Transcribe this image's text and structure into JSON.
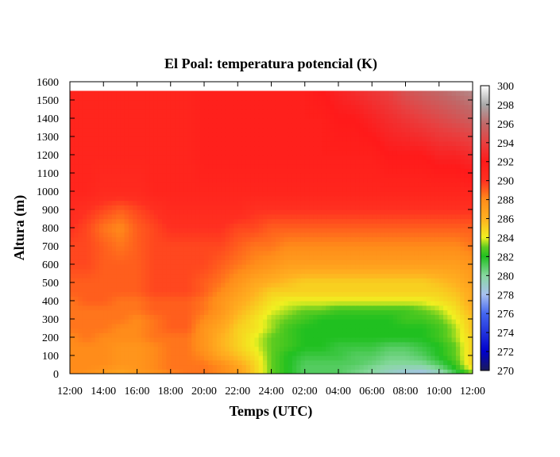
{
  "chart_data": {
    "type": "heatmap",
    "title": "El Poal: temperatura potencial (K)",
    "xlabel": "Temps (UTC)",
    "ylabel": "Altura (m)",
    "x_ticks": [
      "12:00",
      "14:00",
      "16:00",
      "18:00",
      "20:00",
      "22:00",
      "24:00",
      "02:00",
      "04:00",
      "06:00",
      "08:00",
      "10:00",
      "12:00"
    ],
    "x_range_hours": [
      0,
      24
    ],
    "y_ticks": [
      0,
      100,
      200,
      300,
      400,
      500,
      600,
      700,
      800,
      900,
      1000,
      1100,
      1200,
      1300,
      1400,
      1500,
      1600
    ],
    "ylim": [
      0,
      1600
    ],
    "data_top_m": 1550,
    "colorbar": {
      "ticks": [
        270,
        272,
        274,
        276,
        278,
        280,
        282,
        284,
        286,
        288,
        290,
        292,
        294,
        296,
        298,
        300
      ],
      "range": [
        270,
        300
      ],
      "colors": [
        {
          "v": 270,
          "c": "#1a1a5a"
        },
        {
          "v": 272,
          "c": "#0000cc"
        },
        {
          "v": 274,
          "c": "#2233dd"
        },
        {
          "v": 276,
          "c": "#4466ee"
        },
        {
          "v": 278,
          "c": "#a8c0f0"
        },
        {
          "v": 280,
          "c": "#88d8a0"
        },
        {
          "v": 282,
          "c": "#20c020"
        },
        {
          "v": 283,
          "c": "#60cc20"
        },
        {
          "v": 284,
          "c": "#f0f020"
        },
        {
          "v": 286,
          "c": "#ffb020"
        },
        {
          "v": 288,
          "c": "#ff8c1a"
        },
        {
          "v": 290,
          "c": "#ff3020"
        },
        {
          "v": 292,
          "c": "#ff1a1a"
        },
        {
          "v": 294,
          "c": "#e84040"
        },
        {
          "v": 296,
          "c": "#c06868"
        },
        {
          "v": 298,
          "c": "#a8a8a8"
        },
        {
          "v": 300,
          "c": "#ffffff"
        }
      ]
    },
    "heights_m": [
      0,
      25,
      50,
      100,
      150,
      200,
      250,
      300,
      350,
      400,
      450,
      500,
      600,
      700,
      800,
      900,
      1000,
      1200,
      1400,
      1550
    ],
    "times_h": [
      0,
      1,
      2,
      3,
      4,
      5,
      6,
      7,
      8,
      9,
      10,
      11,
      12,
      13,
      14,
      15,
      16,
      17,
      18,
      19,
      20,
      21,
      22,
      23,
      24
    ],
    "values_K": [
      [
        288,
        287.5,
        287,
        286.5,
        287,
        287.5,
        288,
        288.5,
        288.5,
        288,
        287,
        285,
        283,
        282,
        281,
        281,
        281,
        280.5,
        280,
        279,
        278.5,
        278,
        279,
        281,
        283
      ],
      [
        288,
        288,
        287.5,
        287,
        287.5,
        288,
        288.5,
        288.5,
        288.5,
        288,
        287,
        285,
        283,
        282,
        281,
        281,
        281,
        280.5,
        280,
        279.5,
        279,
        279,
        280,
        282,
        284
      ],
      [
        288,
        288,
        288,
        287.5,
        287.5,
        288,
        288.5,
        288.5,
        288.5,
        288,
        286.5,
        285,
        283,
        282,
        281,
        281,
        281,
        281,
        280.5,
        280,
        280,
        280,
        281,
        282.5,
        285
      ],
      [
        288,
        288,
        288,
        287.5,
        287.5,
        288,
        288.5,
        288.5,
        288,
        286.5,
        285.5,
        284.5,
        283,
        282,
        281.5,
        281.5,
        281.5,
        281,
        281,
        280.5,
        280.5,
        281,
        282,
        283,
        285
      ],
      [
        288,
        288,
        288,
        287.5,
        287.5,
        288,
        288.5,
        288.5,
        287.5,
        286,
        285,
        284,
        283,
        282.5,
        282,
        282,
        281.5,
        281.5,
        281.5,
        281,
        281,
        281.5,
        282,
        283,
        285
      ],
      [
        288,
        288.5,
        288,
        288,
        288,
        288.5,
        288.5,
        288.5,
        287.5,
        286,
        285,
        284,
        283,
        282.5,
        282,
        282,
        282,
        282,
        282,
        282,
        282,
        282,
        282.5,
        283.5,
        285
      ],
      [
        288.5,
        288.5,
        288.5,
        288,
        288,
        288.5,
        289,
        289,
        287.5,
        286.5,
        285,
        284.5,
        283.5,
        282.5,
        282,
        282,
        282,
        282,
        282,
        282,
        282,
        282,
        282.5,
        283.5,
        285.5
      ],
      [
        288.5,
        288.5,
        288.5,
        288.5,
        288,
        288.5,
        289,
        289,
        288,
        287,
        285.5,
        284.5,
        283.5,
        283,
        282.5,
        282,
        282,
        282,
        282,
        282,
        282.5,
        282.5,
        283,
        284,
        285.5
      ],
      [
        288.5,
        288.5,
        288.5,
        288.5,
        288.5,
        289,
        289,
        289,
        288.5,
        287.5,
        286,
        285,
        284,
        283.5,
        283,
        283,
        282.5,
        282.5,
        282.5,
        282.5,
        282.5,
        283,
        283.5,
        284.5,
        286
      ],
      [
        288.5,
        289,
        289,
        288.5,
        288.5,
        289,
        289,
        289,
        288.5,
        287.5,
        286.5,
        285.5,
        284.5,
        284,
        284,
        284,
        284,
        284,
        284,
        284,
        284,
        284,
        284.5,
        285,
        286.5
      ],
      [
        289,
        289,
        289,
        289,
        289,
        289.5,
        289.5,
        289.5,
        289,
        288,
        287,
        286,
        285,
        285,
        285,
        285,
        285,
        285,
        285,
        285,
        285,
        285,
        285,
        285.5,
        286.5
      ],
      [
        289,
        289,
        289,
        289,
        289,
        289.5,
        289.5,
        289.5,
        289,
        288.5,
        287.5,
        286.5,
        286,
        285.5,
        285,
        285,
        285,
        285,
        285,
        285,
        285,
        285,
        285.5,
        286,
        287
      ],
      [
        289.5,
        289.5,
        289,
        289,
        289,
        289.5,
        289.5,
        289.5,
        289.5,
        289,
        288.5,
        288,
        287.5,
        287,
        287,
        287,
        287,
        287,
        287,
        287,
        287,
        287,
        287,
        287,
        287.5
      ],
      [
        289.5,
        289.5,
        289,
        288.5,
        289,
        289.5,
        289.5,
        289.5,
        289.5,
        289.5,
        289,
        288.5,
        288.5,
        288,
        288,
        288,
        288,
        288,
        288,
        288,
        288,
        288,
        288,
        288,
        288.5
      ],
      [
        290,
        289.5,
        288.5,
        288,
        289,
        289.5,
        290,
        290,
        290,
        290,
        289.5,
        289.5,
        289,
        289,
        289,
        289,
        289,
        289,
        289,
        289,
        289,
        289,
        289,
        289,
        289
      ],
      [
        290.5,
        290,
        289.5,
        289,
        289.5,
        290,
        290.5,
        290.5,
        290.5,
        290.5,
        290.5,
        290,
        290,
        290,
        290,
        290,
        290,
        290,
        290,
        290,
        290,
        290,
        290,
        290,
        290
      ],
      [
        291,
        291,
        290.5,
        290.5,
        290.5,
        291,
        291,
        291,
        291,
        291,
        291,
        291,
        291,
        291,
        291,
        291,
        291,
        291,
        291,
        291,
        291,
        291,
        291,
        291,
        291
      ],
      [
        291,
        291,
        291,
        291,
        291,
        291,
        291,
        291,
        291.5,
        291.5,
        291.5,
        291.5,
        291.5,
        291.5,
        291.5,
        291.5,
        291.5,
        291.5,
        291.5,
        292,
        292,
        292,
        292.5,
        292.5,
        293
      ],
      [
        291,
        291,
        291,
        291,
        291,
        291,
        291,
        291,
        291.5,
        291.5,
        291.5,
        291.5,
        291.5,
        291.5,
        291.5,
        291.5,
        292,
        292,
        292.5,
        293,
        293.5,
        294,
        294.5,
        295,
        295.5
      ],
      [
        291,
        291,
        291,
        291,
        291,
        291,
        291,
        291,
        291.5,
        291.5,
        291.5,
        291.5,
        291.5,
        291.5,
        291.5,
        292,
        292.5,
        293,
        293.5,
        294,
        295,
        295.5,
        296,
        296.5,
        297
      ]
    ]
  }
}
